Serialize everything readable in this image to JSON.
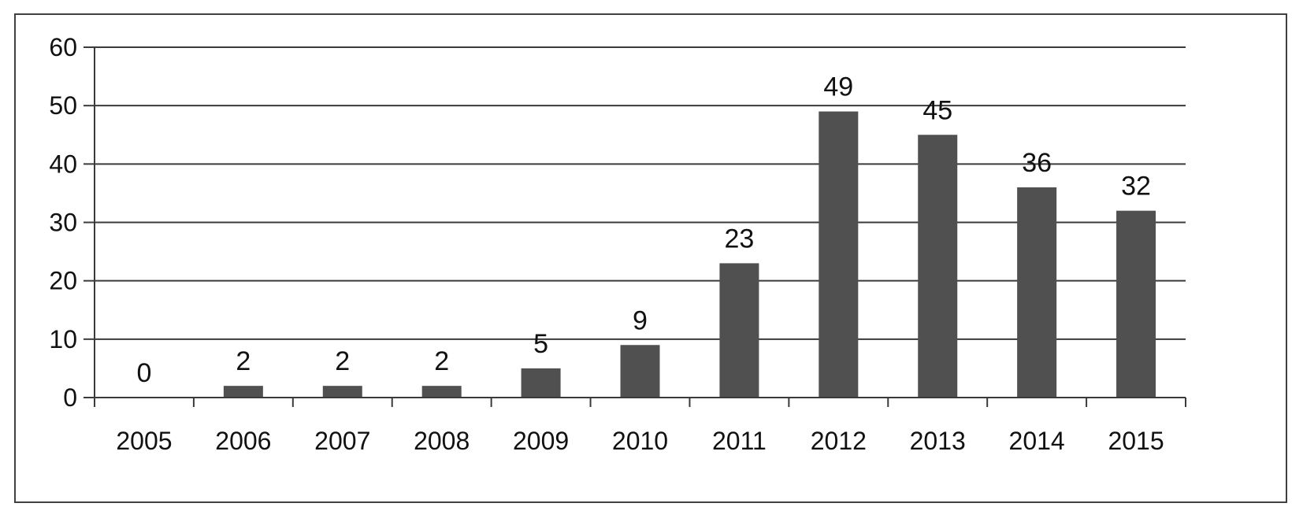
{
  "chart_data": {
    "type": "bar",
    "categories": [
      "2005",
      "2006",
      "2007",
      "2008",
      "2009",
      "2010",
      "2011",
      "2012",
      "2013",
      "2014",
      "2015"
    ],
    "values": [
      0,
      2,
      2,
      2,
      5,
      9,
      23,
      49,
      45,
      36,
      32
    ],
    "title": "",
    "xlabel": "",
    "ylabel": "",
    "ylim": [
      0,
      60
    ],
    "yticks": [
      0,
      10,
      20,
      30,
      40,
      50,
      60
    ],
    "grid": true,
    "legend": "none",
    "data_labels": true,
    "colors": {
      "bar": "#505050",
      "grid": "#3a3a3a",
      "axis": "#3a3a3a",
      "text": "#111111",
      "border": "#404040"
    }
  }
}
